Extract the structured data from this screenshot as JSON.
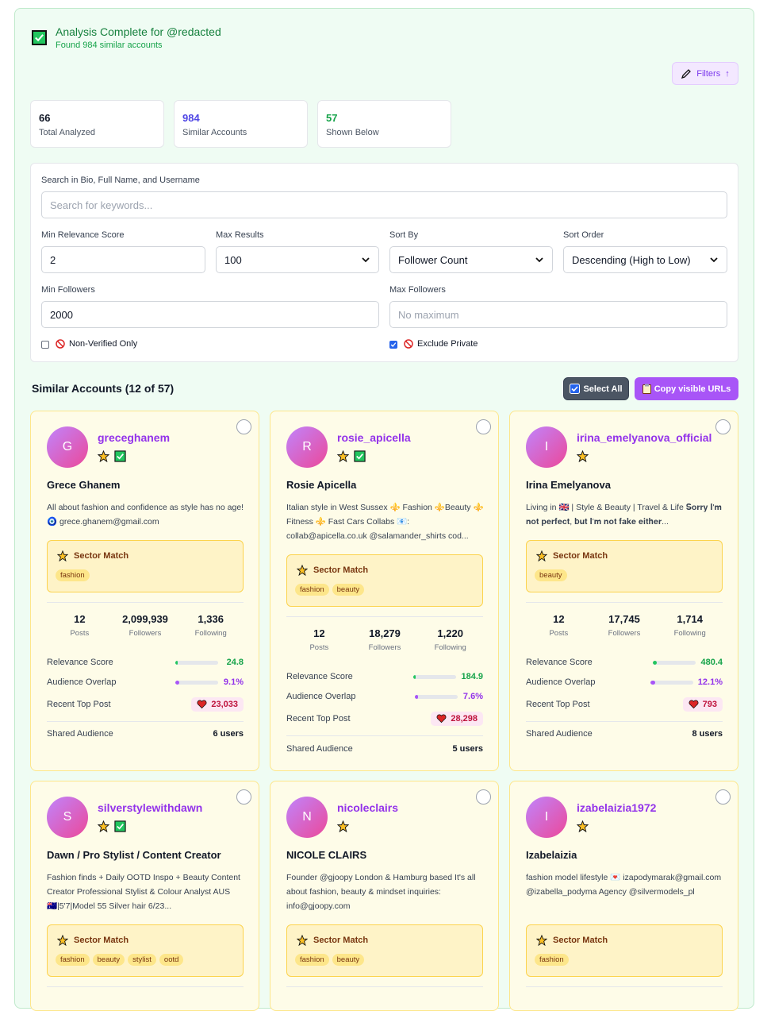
{
  "header": {
    "title": "Analysis Complete for @redacted",
    "subtitle": "Found 984 similar accounts",
    "filters_label": "Filters",
    "filters_arrow": "↑"
  },
  "stats": [
    {
      "value": "66",
      "label": "Total Analyzed",
      "color": "#111827"
    },
    {
      "value": "984",
      "label": "Similar Accounts",
      "color": "#4f46e5"
    },
    {
      "value": "57",
      "label": "Shown Below",
      "color": "#16a34a"
    }
  ],
  "filters": {
    "search_label": "Search in Bio, Full Name, and Username",
    "search_placeholder": "Search for keywords...",
    "min_relevance_label": "Min Relevance Score",
    "min_relevance_value": "2",
    "max_results_label": "Max Results",
    "max_results_value": "100",
    "sort_by_label": "Sort By",
    "sort_by_value": "Follower Count",
    "sort_order_label": "Sort Order",
    "sort_order_value": "Descending (High to Low)",
    "min_followers_label": "Min Followers",
    "min_followers_value": "2000",
    "max_followers_label": "Max Followers",
    "max_followers_placeholder": "No maximum",
    "non_verified_label": "Non-Verified Only",
    "non_verified_checked": false,
    "exclude_private_label": "Exclude Private",
    "exclude_private_checked": true
  },
  "results": {
    "title": "Similar Accounts (12 of 57)",
    "select_all_label": "Select All",
    "copy_urls_label": "Copy visible URLs"
  },
  "card_labels": {
    "sector_match": "Sector Match",
    "posts": "Posts",
    "followers": "Followers",
    "following": "Following",
    "relevance": "Relevance Score",
    "overlap": "Audience Overlap",
    "top_post": "Recent Top Post",
    "shared": "Shared Audience"
  },
  "accounts": [
    {
      "initial": "G",
      "username": "greceghanem",
      "verified": true,
      "full_name": "Grece Ghanem",
      "bio": "All about fashion and confidence as style has no age! 🧿 grece.ghanem@gmail.com",
      "tags": [
        "fashion"
      ],
      "posts": "12",
      "followers": "2,099,939",
      "following": "1,336",
      "relevance": "24.8",
      "relevance_fraction": 0.05,
      "overlap": "9.1%",
      "overlap_fraction": 0.091,
      "top_post": "23,033",
      "shared": "6 users"
    },
    {
      "initial": "R",
      "username": "rosie_apicella",
      "verified": true,
      "full_name": "Rosie Apicella",
      "bio": "Italian style in West Sussex ⚜️ Fashion ⚜️Beauty ⚜️ Fitness ⚜️ Fast Cars Collabs 📧: collab@apicella.co.uk @salamander_shirts cod...",
      "tags": [
        "fashion",
        "beauty"
      ],
      "posts": "12",
      "followers": "18,279",
      "following": "1,220",
      "relevance": "184.9",
      "relevance_fraction": 0.04,
      "overlap": "7.6%",
      "overlap_fraction": 0.076,
      "top_post": "28,298",
      "shared": "5 users"
    },
    {
      "initial": "I",
      "username": "irina_emelyanova_official",
      "verified": false,
      "full_name": "Irina Emelyanova",
      "bio": "Living in 🇬🇧 | Style & Beauty | Travel & Life 𝐒𝐨𝐫𝐫𝐲 𝐈'𝐦 𝐧𝐨𝐭 𝐩𝐞𝐫𝐟𝐞𝐜𝐭, 𝐛𝐮𝐭 𝐈'𝐦 𝐧𝐨𝐭 𝐟𝐚𝐤𝐞 𝐞𝐢𝐭𝐡𝐞𝐫...",
      "tags": [
        "beauty"
      ],
      "posts": "12",
      "followers": "17,745",
      "following": "1,714",
      "relevance": "480.4",
      "relevance_fraction": 0.08,
      "overlap": "12.1%",
      "overlap_fraction": 0.121,
      "top_post": "793",
      "shared": "8 users"
    },
    {
      "initial": "S",
      "username": "silverstylewithdawn",
      "verified": true,
      "full_name": "Dawn / Pro Stylist / Content Creator",
      "bio": "Fashion finds + Daily OOTD Inspo + Beauty Content Creator Professional Stylist & Colour Analyst AUS 🇦🇺|5'7|Model 55 Silver hair 6/23...",
      "tags": [
        "fashion",
        "beauty",
        "stylist",
        "ootd"
      ]
    },
    {
      "initial": "N",
      "username": "nicoleclairs",
      "verified": false,
      "full_name": "NICOLE CLAIRS",
      "bio": "Founder @gjoopy London & Hamburg based It's all about fashion, beauty & mindset inquiries: info@gjoopy.com",
      "tags": [
        "fashion",
        "beauty"
      ]
    },
    {
      "initial": "I",
      "username": "izabelaizia1972",
      "verified": false,
      "full_name": "Izabelaizia",
      "bio": "fashion model lifestyle 💌 izapodymarak@gmail.com @izabella_podyma Agency @silvermodels_pl",
      "tags": [
        "fashion"
      ]
    }
  ],
  "colors": {
    "accent": "#a855f7",
    "success": "#22c55e",
    "relevance_bar": "#22c55e",
    "overlap_bar": "#a855f7",
    "heart": "#dc2626"
  },
  "icons": [
    "check-icon",
    "pencil-icon",
    "no-entry-icon",
    "star-icon",
    "verified-icon",
    "heart-icon",
    "clipboard-icon",
    "chevron-down-icon"
  ]
}
